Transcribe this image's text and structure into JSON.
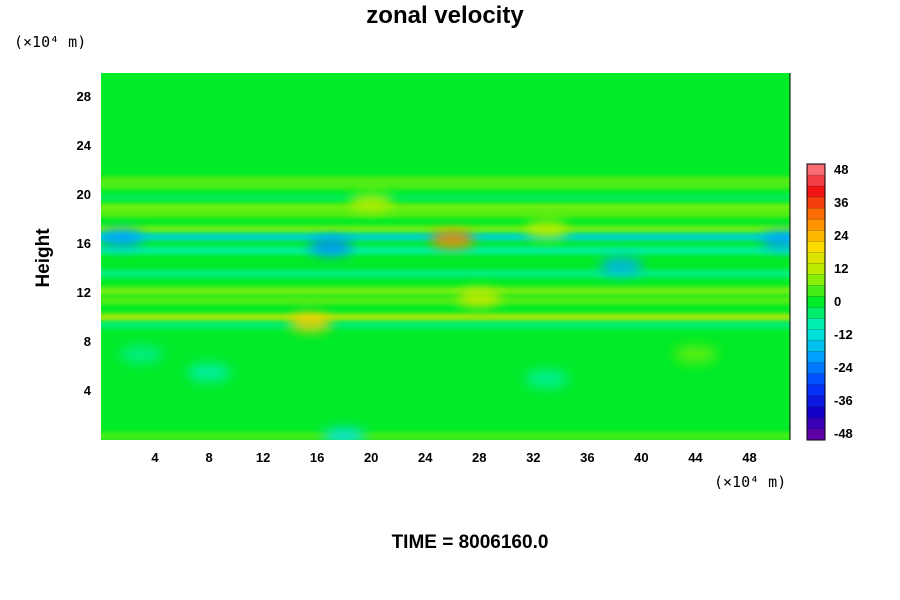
{
  "chart_data": {
    "type": "heatmap",
    "title": "zonal velocity",
    "ylabel": "Height",
    "xlabel": "",
    "x_unit_label": "(×10⁴ m)",
    "y_unit_label": "(×10⁴ m)",
    "xlim": [
      0,
      51
    ],
    "ylim": [
      0,
      30
    ],
    "x_ticks": [
      4,
      8,
      12,
      16,
      20,
      24,
      28,
      32,
      36,
      40,
      44,
      48
    ],
    "y_ticks": [
      4,
      8,
      12,
      16,
      20,
      24,
      28
    ],
    "colorbar": {
      "range": [
        -50,
        50
      ],
      "ticks": [
        48,
        36,
        24,
        12,
        0,
        -12,
        -24,
        -36,
        -48
      ],
      "colormap": "rainbow (purple → blue → cyan → green → yellow → orange → red → pink)"
    },
    "background_value": 0,
    "features": [
      {
        "kind": "band",
        "y": 21.2,
        "value": 6
      },
      {
        "kind": "band",
        "y": 20.8,
        "value": 5
      },
      {
        "kind": "band",
        "y": 19.8,
        "value": -3
      },
      {
        "kind": "band",
        "y": 19.0,
        "value": 8
      },
      {
        "kind": "band",
        "y": 18.5,
        "value": 6
      },
      {
        "kind": "band",
        "y": 17.2,
        "value": 8
      },
      {
        "kind": "band",
        "y": 16.6,
        "value": -14
      },
      {
        "kind": "band",
        "y": 15.5,
        "value": -8
      },
      {
        "kind": "band",
        "y": 13.6,
        "value": -6
      },
      {
        "kind": "band",
        "y": 12.2,
        "value": 8
      },
      {
        "kind": "band",
        "y": 11.4,
        "value": 6
      },
      {
        "kind": "band",
        "y": 10.0,
        "value": 14
      },
      {
        "kind": "band",
        "y": 9.4,
        "value": -5
      },
      {
        "kind": "band",
        "y": 0.3,
        "value": 5
      },
      {
        "kind": "spot",
        "x": 26,
        "y": 16.4,
        "value": 30
      },
      {
        "kind": "spot",
        "x": 15.5,
        "y": 9.6,
        "value": 22
      },
      {
        "kind": "spot",
        "x": 17,
        "y": 15.8,
        "value": -22
      },
      {
        "kind": "spot",
        "x": 1.5,
        "y": 16.5,
        "value": -20
      },
      {
        "kind": "spot",
        "x": 50.5,
        "y": 16.3,
        "value": -20
      },
      {
        "kind": "spot",
        "x": 38.5,
        "y": 14.2,
        "value": -18
      },
      {
        "kind": "spot",
        "x": 20,
        "y": 19.4,
        "value": 12
      },
      {
        "kind": "spot",
        "x": 28,
        "y": 11.6,
        "value": 14
      },
      {
        "kind": "spot",
        "x": 33,
        "y": 17.2,
        "value": 12
      },
      {
        "kind": "spot",
        "x": 18,
        "y": 0.3,
        "value": -12
      },
      {
        "kind": "spot",
        "x": 3,
        "y": 7.0,
        "value": -6
      },
      {
        "kind": "spot",
        "x": 8,
        "y": 5.5,
        "value": -8
      },
      {
        "kind": "spot",
        "x": 33,
        "y": 5.0,
        "value": -7
      },
      {
        "kind": "spot",
        "x": 44,
        "y": 7.0,
        "value": 6
      }
    ]
  },
  "footer": {
    "time_label": "TIME = 8006160.0"
  }
}
